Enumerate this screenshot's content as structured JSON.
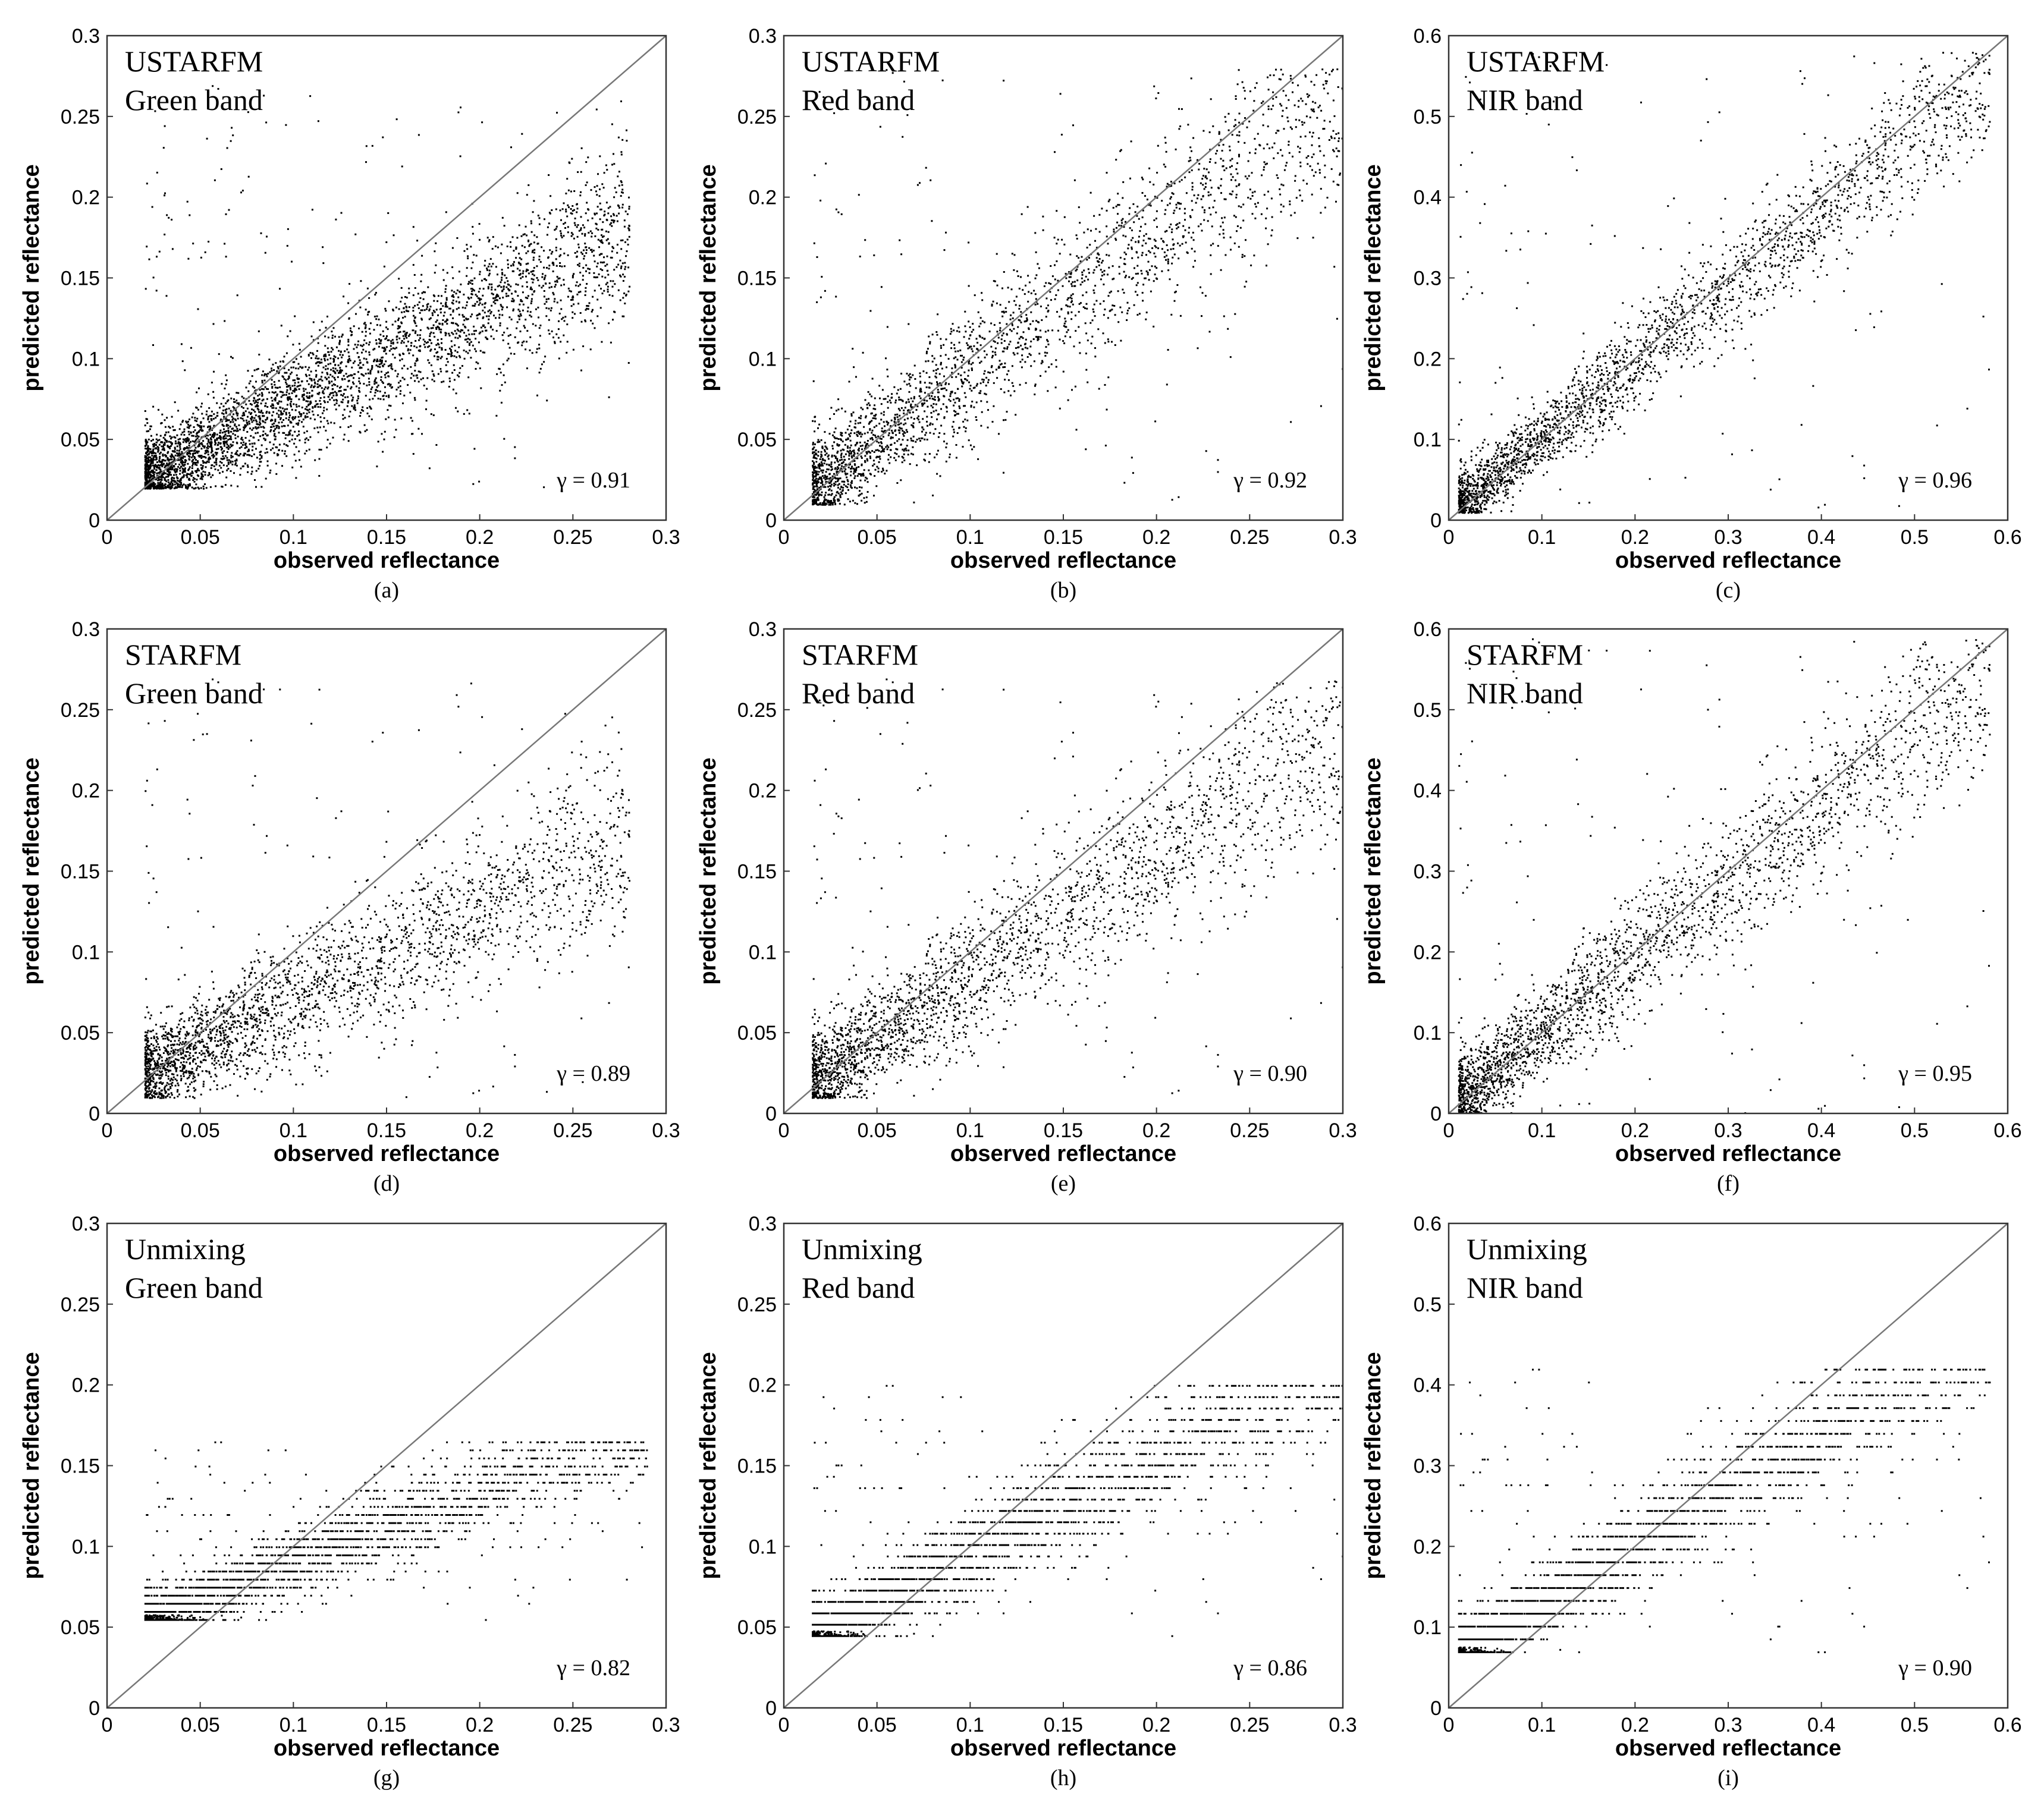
{
  "chart_data": [
    {
      "type": "scatter",
      "panel_label": "(a)",
      "method": "USTARFM",
      "band": "Green band",
      "gamma": "γ = 0.91",
      "xlabel": "observed reflectance",
      "ylabel": "predicted reflectance",
      "xlim": [
        0,
        0.3
      ],
      "ylim": [
        0,
        0.3
      ],
      "xticks": [
        "0",
        "0.05",
        "0.1",
        "0.15",
        "0.2",
        "0.25",
        "0.3"
      ],
      "yticks": [
        "0",
        "0.05",
        "0.1",
        "0.15",
        "0.2",
        "0.25",
        "0.3"
      ],
      "reference_line": "1:1",
      "cloud": {
        "x_range": [
          0.02,
          0.28
        ],
        "y_range": [
          0.02,
          0.27
        ],
        "slope": 0.58,
        "intercept": 0.015,
        "spread": 0.018,
        "striped": false
      }
    },
    {
      "type": "scatter",
      "panel_label": "(b)",
      "method": "USTARFM",
      "band": "Red band",
      "gamma": "γ = 0.92",
      "xlabel": "observed reflectance",
      "ylabel": "predicted reflectance",
      "xlim": [
        0,
        0.3
      ],
      "ylim": [
        0,
        0.3
      ],
      "xticks": [
        "0",
        "0.05",
        "0.1",
        "0.15",
        "0.2",
        "0.25",
        "0.3"
      ],
      "yticks": [
        "0",
        "0.05",
        "0.1",
        "0.15",
        "0.2",
        "0.25",
        "0.3"
      ],
      "reference_line": "1:1",
      "cloud": {
        "x_range": [
          0.015,
          0.3
        ],
        "y_range": [
          0.01,
          0.28
        ],
        "slope": 0.85,
        "intercept": 0.008,
        "spread": 0.022,
        "striped": false
      }
    },
    {
      "type": "scatter",
      "panel_label": "(c)",
      "method": "USTARFM",
      "band": "NIR band",
      "gamma": "γ = 0.96",
      "xlabel": "observed reflectance",
      "ylabel": "predicted reflectance",
      "xlim": [
        0,
        0.6
      ],
      "ylim": [
        0,
        0.6
      ],
      "xticks": [
        "0",
        "0.1",
        "0.2",
        "0.3",
        "0.4",
        "0.5",
        "0.6"
      ],
      "yticks": [
        "0",
        "0.1",
        "0.2",
        "0.3",
        "0.4",
        "0.5",
        "0.6"
      ],
      "reference_line": "1:1",
      "cloud": {
        "x_range": [
          0.01,
          0.58
        ],
        "y_range": [
          0.01,
          0.58
        ],
        "slope": 0.93,
        "intercept": 0.01,
        "spread": 0.03,
        "striped": false
      }
    },
    {
      "type": "scatter",
      "panel_label": "(d)",
      "method": "STARFM",
      "band": "Green band",
      "gamma": "γ = 0.89",
      "xlabel": "observed reflectance",
      "ylabel": "predicted reflectance",
      "xlim": [
        0,
        0.3
      ],
      "ylim": [
        0,
        0.3
      ],
      "xticks": [
        "0",
        "0.05",
        "0.1",
        "0.15",
        "0.2",
        "0.25",
        "0.3"
      ],
      "yticks": [
        "0",
        "0.05",
        "0.1",
        "0.15",
        "0.2",
        "0.25",
        "0.3"
      ],
      "reference_line": "1:1",
      "cloud": {
        "x_range": [
          0.02,
          0.28
        ],
        "y_range": [
          0.01,
          0.27
        ],
        "slope": 0.55,
        "intercept": 0.015,
        "spread": 0.02,
        "striped": false
      }
    },
    {
      "type": "scatter",
      "panel_label": "(e)",
      "method": "STARFM",
      "band": "Red band",
      "gamma": "γ = 0.90",
      "xlabel": "observed reflectance",
      "ylabel": "predicted reflectance",
      "xlim": [
        0,
        0.3
      ],
      "ylim": [
        0,
        0.3
      ],
      "xticks": [
        "0",
        "0.05",
        "0.1",
        "0.15",
        "0.2",
        "0.25",
        "0.3"
      ],
      "yticks": [
        "0",
        "0.05",
        "0.1",
        "0.15",
        "0.2",
        "0.25",
        "0.3"
      ],
      "reference_line": "1:1",
      "cloud": {
        "x_range": [
          0.015,
          0.3
        ],
        "y_range": [
          0.01,
          0.27
        ],
        "slope": 0.75,
        "intercept": 0.01,
        "spread": 0.022,
        "striped": false
      }
    },
    {
      "type": "scatter",
      "panel_label": "(f)",
      "method": "STARFM",
      "band": "NIR band",
      "gamma": "γ = 0.95",
      "xlabel": "observed reflectance",
      "ylabel": "predicted reflectance",
      "xlim": [
        0,
        0.6
      ],
      "ylim": [
        0,
        0.6
      ],
      "xticks": [
        "0",
        "0.1",
        "0.2",
        "0.3",
        "0.4",
        "0.5",
        "0.6"
      ],
      "yticks": [
        "0",
        "0.1",
        "0.2",
        "0.3",
        "0.4",
        "0.5",
        "0.6"
      ],
      "reference_line": "1:1",
      "cloud": {
        "x_range": [
          0.01,
          0.58
        ],
        "y_range": [
          0.0,
          0.59
        ],
        "slope": 0.92,
        "intercept": 0.01,
        "spread": 0.04,
        "striped": false
      }
    },
    {
      "type": "scatter",
      "panel_label": "(g)",
      "method": "Unmixing",
      "band": "Green band",
      "gamma": "γ = 0.82",
      "xlabel": "observed reflectance",
      "ylabel": "predicted reflectance",
      "xlim": [
        0,
        0.3
      ],
      "ylim": [
        0,
        0.3
      ],
      "xticks": [
        "0",
        "0.05",
        "0.1",
        "0.15",
        "0.2",
        "0.25",
        "0.3"
      ],
      "yticks": [
        "0",
        "0.05",
        "0.1",
        "0.15",
        "0.2",
        "0.25",
        "0.3"
      ],
      "reference_line": "1:1",
      "cloud": {
        "x_range": [
          0.02,
          0.29
        ],
        "y_range": [
          0.055,
          0.165
        ],
        "slope": 0.45,
        "intercept": 0.045,
        "spread": 0.012,
        "striped": true
      }
    },
    {
      "type": "scatter",
      "panel_label": "(h)",
      "method": "Unmixing",
      "band": "Red band",
      "gamma": "γ = 0.86",
      "xlabel": "observed reflectance",
      "ylabel": "predicted reflectance",
      "xlim": [
        0,
        0.3
      ],
      "ylim": [
        0,
        0.3
      ],
      "xticks": [
        "0",
        "0.05",
        "0.1",
        "0.15",
        "0.2",
        "0.25",
        "0.3"
      ],
      "yticks": [
        "0",
        "0.05",
        "0.1",
        "0.15",
        "0.2",
        "0.25",
        "0.3"
      ],
      "reference_line": "1:1",
      "cloud": {
        "x_range": [
          0.015,
          0.3
        ],
        "y_range": [
          0.045,
          0.2
        ],
        "slope": 0.6,
        "intercept": 0.035,
        "spread": 0.015,
        "striped": true
      }
    },
    {
      "type": "scatter",
      "panel_label": "(i)",
      "method": "Unmixing",
      "band": "NIR band",
      "gamma": "γ = 0.90",
      "xlabel": "observed reflectance",
      "ylabel": "predicted reflectance",
      "xlim": [
        0,
        0.6
      ],
      "ylim": [
        0,
        0.6
      ],
      "xticks": [
        "0",
        "0.1",
        "0.2",
        "0.3",
        "0.4",
        "0.5",
        "0.6"
      ],
      "yticks": [
        "0",
        "0.1",
        "0.2",
        "0.3",
        "0.4",
        "0.5",
        "0.6"
      ],
      "reference_line": "1:1",
      "cloud": {
        "x_range": [
          0.01,
          0.58
        ],
        "y_range": [
          0.07,
          0.42
        ],
        "slope": 0.7,
        "intercept": 0.06,
        "spread": 0.03,
        "striped": true
      }
    }
  ]
}
